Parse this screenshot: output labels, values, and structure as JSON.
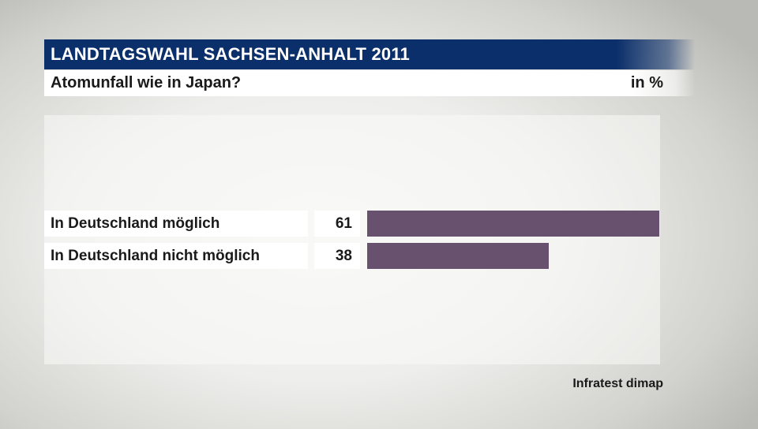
{
  "header": {
    "title": "LANDTAGSWAHL SACHSEN-ANHALT 2011",
    "subtitle": "Atomunfall wie in Japan?",
    "unit": "in %"
  },
  "source": "Infratest dimap",
  "colors": {
    "title_bar": "#0b2f6b",
    "bar": "#67516f"
  },
  "chart_data": {
    "type": "bar",
    "orientation": "horizontal",
    "title": "Atomunfall wie in Japan?",
    "unit": "in %",
    "categories": [
      "In Deutschland möglich",
      "In Deutschland nicht möglich"
    ],
    "values": [
      61,
      38
    ],
    "xlim": [
      0,
      61
    ]
  }
}
